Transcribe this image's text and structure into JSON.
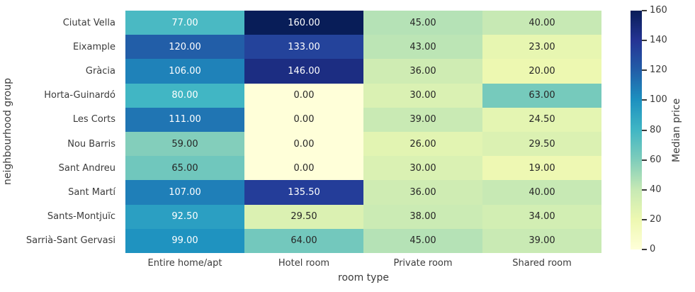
{
  "chart_data": {
    "type": "heatmap",
    "title": "",
    "xlabel": "room type",
    "ylabel": "neighbourhood group",
    "colorbar_label": "Median price",
    "columns": [
      "Entire home/apt",
      "Hotel room",
      "Private room",
      "Shared room"
    ],
    "rows": [
      "Ciutat Vella",
      "Eixample",
      "Gràcia",
      "Horta-Guinardó",
      "Les Corts",
      "Nou Barris",
      "Sant Andreu",
      "Sant Martí",
      "Sants-Montjuïc",
      "Sarrià-Sant Gervasi"
    ],
    "values": [
      [
        77.0,
        160.0,
        45.0,
        40.0
      ],
      [
        120.0,
        133.0,
        43.0,
        23.0
      ],
      [
        106.0,
        146.0,
        36.0,
        20.0
      ],
      [
        80.0,
        0.0,
        30.0,
        63.0
      ],
      [
        111.0,
        0.0,
        39.0,
        24.5
      ],
      [
        59.0,
        0.0,
        26.0,
        29.5
      ],
      [
        65.0,
        0.0,
        30.0,
        19.0
      ],
      [
        107.0,
        135.5,
        36.0,
        40.0
      ],
      [
        92.5,
        29.5,
        38.0,
        34.0
      ],
      [
        99.0,
        64.0,
        45.0,
        39.0
      ]
    ],
    "value_decimals": 2,
    "vmin": 0,
    "vmax": 160,
    "colorbar_ticks": [
      0,
      20,
      40,
      60,
      80,
      100,
      120,
      140,
      160
    ],
    "colormap": {
      "name": "YlGnBu",
      "stops": [
        "#ffffd9",
        "#edf8b1",
        "#c7e9b4",
        "#7fcdbb",
        "#41b6c4",
        "#1d91c0",
        "#225ea8",
        "#253494",
        "#081d58"
      ]
    },
    "annotation_colors": {
      "light_text": "#ffffff",
      "dark_text": "#262626"
    },
    "axis_text_color": "#3b3b3b",
    "legend_position": "right",
    "grid": false
  }
}
